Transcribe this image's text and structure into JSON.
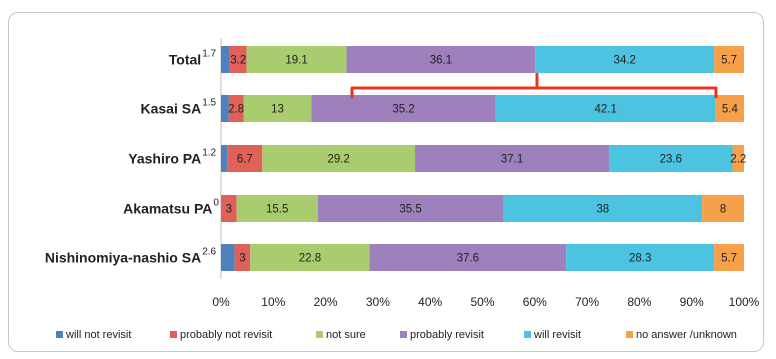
{
  "chart_data": {
    "type": "bar",
    "orientation": "horizontal",
    "stacked": "percent",
    "categories": [
      "Total",
      "Kasai SA",
      "Yashiro PA",
      "Akamatsu PA",
      "Nishinomiya-nashio SA"
    ],
    "series": [
      {
        "name": "will not revisit",
        "color": "#4F81BD",
        "values": [
          1.7,
          1.5,
          1.2,
          0,
          2.6
        ]
      },
      {
        "name": "probably not revisit",
        "color": "#E0605A",
        "values": [
          3.2,
          2.8,
          6.7,
          3,
          3
        ]
      },
      {
        "name": "not sure",
        "color": "#A9CD6E",
        "values": [
          19.1,
          13,
          29.2,
          15.5,
          22.8
        ]
      },
      {
        "name": "probably revisit",
        "color": "#9D80BC",
        "values": [
          36.1,
          35.2,
          37.1,
          35.5,
          37.6
        ]
      },
      {
        "name": "will revisit",
        "color": "#4BC3E1",
        "values": [
          34.2,
          42.1,
          23.6,
          38,
          28.3
        ]
      },
      {
        "name": "no answer /unknown",
        "color": "#F7A04A",
        "values": [
          5.7,
          5.4,
          2.2,
          8,
          5.7
        ]
      }
    ],
    "xlim": [
      0,
      100
    ],
    "x_ticks": [
      "0%",
      "10%",
      "20%",
      "30%",
      "40%",
      "50%",
      "60%",
      "70%",
      "80%",
      "90%",
      "100%"
    ],
    "legend_position": "bottom",
    "annotation": {
      "type": "bracket",
      "color": "#E8361C"
    }
  }
}
